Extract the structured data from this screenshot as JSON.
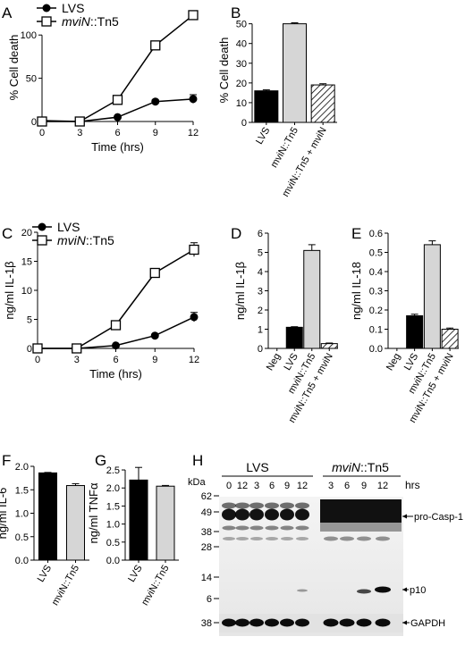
{
  "chart_data": [
    {
      "panel": "A",
      "type": "line",
      "ylabel": "% Cell death",
      "xlabel": "Time (hrs)",
      "xticks": [
        0,
        3,
        6,
        9,
        12
      ],
      "yticks": [
        0,
        50,
        100
      ],
      "xlim": [
        0,
        12
      ],
      "ylim": [
        0,
        125
      ],
      "legend": [
        {
          "marker": "filled-circle",
          "label": "LVS"
        },
        {
          "marker": "open-square",
          "italic_part": "mviN",
          "rest": "::Tn5"
        }
      ],
      "series": [
        {
          "name": "LVS",
          "marker": "filled-circle",
          "x": [
            0,
            3,
            6,
            9,
            12
          ],
          "y": [
            1,
            0,
            5,
            23,
            26
          ],
          "err": [
            0,
            0,
            1,
            2,
            5
          ]
        },
        {
          "name": "mviN::Tn5",
          "marker": "open-square",
          "x": [
            0,
            3,
            6,
            9,
            12
          ],
          "y": [
            0,
            0,
            25,
            88,
            123
          ],
          "err": [
            0,
            0,
            2,
            2,
            2
          ]
        }
      ]
    },
    {
      "panel": "B",
      "type": "bar",
      "ylabel": "% Cell death",
      "categories": [
        "LVS",
        "mviN::Tn5",
        "mviN::Tn5 + mviN"
      ],
      "values": [
        16,
        50,
        19
      ],
      "err": [
        0.5,
        0.5,
        0.6
      ],
      "fills": [
        "solid",
        "gray",
        "hatched"
      ],
      "yticks": [
        0,
        10,
        20,
        30,
        40,
        50
      ],
      "ylim": [
        0,
        53
      ]
    },
    {
      "panel": "C",
      "type": "line",
      "ylabel": "ng/ml IL-1β",
      "xlabel": "Time (hrs)",
      "xticks": [
        0,
        3,
        6,
        9,
        12
      ],
      "yticks": [
        0,
        5,
        10,
        15,
        20
      ],
      "xlim": [
        0,
        12
      ],
      "ylim": [
        0,
        20
      ],
      "legend": [
        {
          "marker": "filled-circle",
          "label": "LVS"
        },
        {
          "marker": "open-square",
          "italic_part": "mviN",
          "rest": "::Tn5"
        }
      ],
      "series": [
        {
          "name": "LVS",
          "marker": "filled-circle",
          "x": [
            0,
            3,
            6,
            9,
            12
          ],
          "y": [
            0,
            0,
            0.5,
            2.2,
            5.4
          ],
          "err": [
            0,
            0,
            0.1,
            0.2,
            0.8
          ]
        },
        {
          "name": "mviN::Tn5",
          "marker": "open-square",
          "x": [
            0,
            3,
            6,
            9,
            12
          ],
          "y": [
            0,
            0,
            4.0,
            13.0,
            17.0
          ],
          "err": [
            0,
            0,
            0.3,
            0.4,
            1.2
          ]
        }
      ]
    },
    {
      "panel": "D",
      "type": "bar",
      "ylabel": "ng/ml IL-1β",
      "categories": [
        "Neg",
        "LVS",
        "mviN::Tn5",
        "mviN::Tn5 + mviN"
      ],
      "values": [
        0,
        1.1,
        5.1,
        0.25
      ],
      "err": [
        0,
        0.03,
        0.3,
        0.03
      ],
      "fills": [
        "solid",
        "solid",
        "gray",
        "hatched"
      ],
      "yticks": [
        0,
        1,
        2,
        3,
        4,
        5,
        6
      ],
      "ylim": [
        0,
        6
      ]
    },
    {
      "panel": "E",
      "type": "bar",
      "ylabel": "ng/ml IL-18",
      "categories": [
        "Neg",
        "LVS",
        "mviN::Tn5",
        "mviN::Tn5 + mviN"
      ],
      "values": [
        0,
        0.17,
        0.54,
        0.1
      ],
      "err": [
        0,
        0.008,
        0.02,
        0.006
      ],
      "fills": [
        "solid",
        "solid",
        "gray",
        "hatched"
      ],
      "yticks": [
        0.0,
        0.1,
        0.2,
        0.3,
        0.4,
        0.5,
        0.6
      ],
      "ylim": [
        0,
        0.6
      ]
    },
    {
      "panel": "F",
      "type": "bar",
      "ylabel": "ng/ml IL-6",
      "categories": [
        "LVS",
        "mviN::Tn5"
      ],
      "values": [
        1.86,
        1.59
      ],
      "err": [
        0.01,
        0.04
      ],
      "fills": [
        "solid",
        "gray"
      ],
      "yticks": [
        0.0,
        0.5,
        1.0,
        1.5,
        2.0
      ],
      "ylim": [
        0,
        2.0
      ]
    },
    {
      "panel": "G",
      "type": "bar",
      "ylabel": "ng/ml TNFα",
      "categories": [
        "LVS",
        "mviN::Tn5"
      ],
      "values": [
        2.22,
        2.05
      ],
      "err": [
        0.35,
        0.02
      ],
      "fills": [
        "solid",
        "gray"
      ],
      "yticks": [
        0.0,
        0.5,
        1.0,
        1.5,
        2.0,
        2.5
      ],
      "ylim": [
        0,
        2.6
      ]
    }
  ],
  "blot": {
    "panel": "H",
    "kda_label": "kDa",
    "markers": [
      "62",
      "49",
      "38",
      "28",
      "14",
      "6",
      "38"
    ],
    "group1": "LVS",
    "group2_italic": "mviN",
    "group2_rest": "::Tn5",
    "lanes1": [
      "0",
      "12",
      "3",
      "6",
      "9",
      "12"
    ],
    "lanes2": [
      "3",
      "6",
      "9",
      "12"
    ],
    "hrs": "hrs",
    "star": "*",
    "band_labels": [
      "pro-Casp-1",
      "p10",
      "GAPDH"
    ]
  }
}
